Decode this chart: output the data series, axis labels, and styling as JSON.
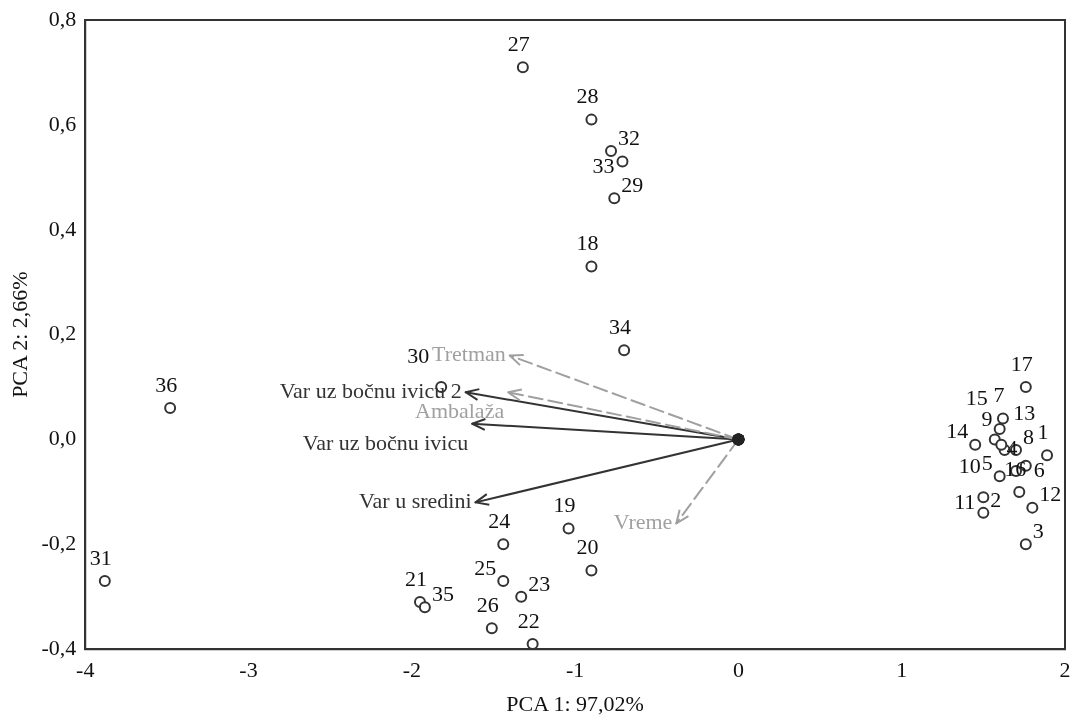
{
  "chart_data": {
    "type": "scatter",
    "xlabel": "PCA 1: 97,02%",
    "ylabel": "PCA 2: 2,66%",
    "xlim": [
      -4,
      2
    ],
    "xticks": [
      -4,
      -3,
      -2,
      -1,
      0,
      1,
      2
    ],
    "ylim": [
      -0.4,
      0.8
    ],
    "yticks": [
      {
        "value": -0.4,
        "label": "-0,4"
      },
      {
        "value": -0.2,
        "label": "-0,2"
      },
      {
        "value": 0,
        "label": "0,0"
      },
      {
        "value": 0.2,
        "label": "0,2"
      },
      {
        "value": 0.4,
        "label": "0,4"
      },
      {
        "value": 0.6,
        "label": "0,6"
      },
      {
        "value": 0.8,
        "label": "0,8"
      }
    ],
    "grid": false,
    "marker": "circle",
    "series": [
      {
        "color": "#333333",
        "x": [
          1.89,
          1.5,
          1.76,
          1.7,
          1.6,
          1.76,
          1.62,
          1.7,
          1.63,
          1.57,
          1.5,
          1.8,
          1.61,
          1.45,
          1.6,
          1.72,
          1.76,
          -0.9,
          -1.04,
          -0.9,
          -1.95,
          -1.26,
          -1.33,
          -1.44,
          -1.44,
          -1.51,
          -1.32,
          -0.9,
          -0.76,
          -1.82,
          -3.88,
          -0.78,
          -0.71,
          -0.7,
          -1.92,
          -3.48
        ],
        "values": [
          -0.03,
          -0.14,
          -0.2,
          -0.06,
          -0.07,
          -0.05,
          0.04,
          -0.02,
          -0.02,
          0.0,
          -0.11,
          -0.13,
          -0.01,
          -0.01,
          0.02,
          -0.1,
          0.1,
          0.33,
          -0.17,
          -0.25,
          -0.31,
          -0.39,
          -0.3,
          -0.2,
          -0.27,
          -0.36,
          0.71,
          0.61,
          0.46,
          0.1,
          -0.27,
          0.55,
          0.53,
          0.17,
          -0.32,
          0.06
        ]
      },
      {
        "type": "line",
        "color": "#a0a0a0",
        "line_style": "dashed",
        "x": [
          0,
          -1.4
        ],
        "values": [
          0,
          0.16
        ]
      },
      {
        "type": "line",
        "color": "#a0a0a0",
        "line_style": "dashed",
        "x": [
          0,
          -1.41
        ],
        "values": [
          0,
          0.09
        ]
      },
      {
        "type": "line",
        "color": "#333333",
        "line_style": "solid",
        "x": [
          0,
          -1.67
        ],
        "values": [
          0,
          0.09
        ]
      },
      {
        "type": "line",
        "color": "#333333",
        "line_style": "solid",
        "x": [
          0,
          -1.63
        ],
        "values": [
          0,
          0.03
        ]
      },
      {
        "type": "line",
        "color": "#333333",
        "line_style": "solid",
        "x": [
          0,
          -1.61
        ],
        "values": [
          0,
          -0.12
        ]
      },
      {
        "type": "line",
        "color": "#a0a0a0",
        "line_style": "dashed",
        "x": [
          0,
          -0.38
        ],
        "values": [
          0,
          -0.16
        ]
      }
    ],
    "annotations": [
      {
        "text": "Tretman",
        "x": -1.4,
        "y": 0.16
      },
      {
        "text": "Ambalaža",
        "x": -1.41,
        "y": 0.09
      },
      {
        "text": "Var uz bočnu ivicu 2",
        "x": -1.67,
        "y": 0.09
      },
      {
        "text": "Var uz bočnu ivicu",
        "x": -1.63,
        "y": 0.03
      },
      {
        "text": "Var u sredini",
        "x": -1.61,
        "y": -0.12
      },
      {
        "text": "Vreme",
        "x": -0.38,
        "y": -0.16
      },
      {
        "text": "1",
        "x": 1.89,
        "y": -0.03
      },
      {
        "text": "2",
        "x": 1.5,
        "y": -0.14
      },
      {
        "text": "3",
        "x": 1.76,
        "y": -0.2
      },
      {
        "text": "4",
        "x": 1.7,
        "y": -0.06
      },
      {
        "text": "5",
        "x": 1.6,
        "y": -0.07
      },
      {
        "text": "6",
        "x": 1.76,
        "y": -0.05
      },
      {
        "text": "7",
        "x": 1.62,
        "y": 0.04
      },
      {
        "text": "8",
        "x": 1.7,
        "y": -0.02
      },
      {
        "text": "9",
        "x": 1.63,
        "y": -0.02
      },
      {
        "text": "10",
        "x": 1.57,
        "y": 0.0
      },
      {
        "text": "11",
        "x": 1.5,
        "y": -0.11
      },
      {
        "text": "12",
        "x": 1.8,
        "y": -0.13
      },
      {
        "text": "13",
        "x": 1.61,
        "y": -0.01
      },
      {
        "text": "14",
        "x": 1.45,
        "y": -0.01
      },
      {
        "text": "15",
        "x": 1.6,
        "y": 0.02
      },
      {
        "text": "16",
        "x": 1.72,
        "y": -0.1
      },
      {
        "text": "17",
        "x": 1.76,
        "y": 0.1
      },
      {
        "text": "18",
        "x": -0.9,
        "y": 0.33
      },
      {
        "text": "19",
        "x": -1.04,
        "y": -0.17
      },
      {
        "text": "20",
        "x": -0.9,
        "y": -0.25
      },
      {
        "text": "21",
        "x": -1.95,
        "y": -0.31
      },
      {
        "text": "22",
        "x": -1.26,
        "y": -0.39
      },
      {
        "text": "23",
        "x": -1.33,
        "y": -0.3
      },
      {
        "text": "24",
        "x": -1.44,
        "y": -0.2
      },
      {
        "text": "25",
        "x": -1.44,
        "y": -0.27
      },
      {
        "text": "26",
        "x": -1.51,
        "y": -0.36
      },
      {
        "text": "27",
        "x": -1.32,
        "y": 0.71
      },
      {
        "text": "28",
        "x": -0.9,
        "y": 0.61
      },
      {
        "text": "29",
        "x": -0.76,
        "y": 0.46
      },
      {
        "text": "30",
        "x": -1.82,
        "y": 0.1
      },
      {
        "text": "31",
        "x": -3.88,
        "y": -0.27
      },
      {
        "text": "32",
        "x": -0.78,
        "y": 0.55
      },
      {
        "text": "33",
        "x": -0.71,
        "y": 0.53
      },
      {
        "text": "34",
        "x": -0.7,
        "y": 0.17
      },
      {
        "text": "35",
        "x": -1.92,
        "y": -0.32
      },
      {
        "text": "36",
        "x": -3.48,
        "y": 0.06
      }
    ]
  }
}
